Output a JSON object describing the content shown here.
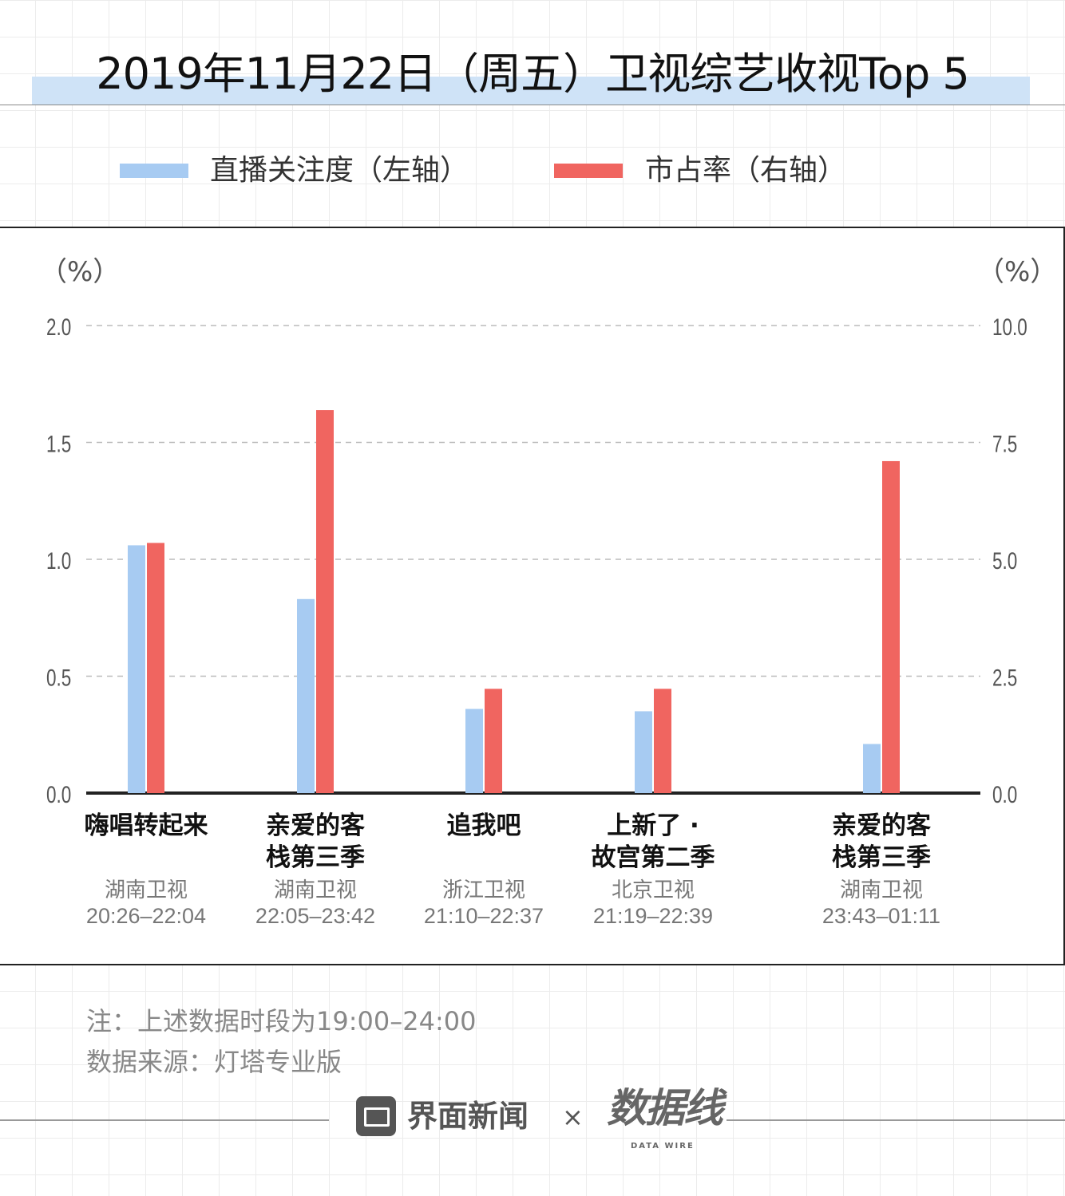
{
  "title": "2019年11月22日（周五）卫视综艺收视Top 5",
  "legend": [
    {
      "label": "直播关注度（左轴）",
      "color": "#a7cbf2"
    },
    {
      "label": "市占率（右轴）",
      "color": "#f06560"
    }
  ],
  "chart_data": {
    "type": "bar",
    "title": "2019年11月22日（周五）卫视综艺收视Top 5",
    "categories": [
      "嗨唱转起来",
      "亲爱的客栈第三季",
      "追我吧",
      "上新了·故宫第二季",
      "亲爱的客栈第三季"
    ],
    "category_lines": [
      [
        "嗨唱转起来"
      ],
      [
        "亲爱的客",
        "栈第三季"
      ],
      [
        "追我吧"
      ],
      [
        "上新了 ·",
        "故宫第二季"
      ],
      [
        "亲爱的客",
        "栈第三季"
      ]
    ],
    "channels": [
      "湖南卫视",
      "湖南卫视",
      "浙江卫视",
      "北京卫视",
      "湖南卫视"
    ],
    "time_slots": [
      "20:26–22:04",
      "22:05–23:42",
      "21:10–22:37",
      "21:19–22:39",
      "23:43–01:11"
    ],
    "series": [
      {
        "name": "直播关注度（左轴）",
        "axis": "left",
        "color": "#a7cbf2",
        "values": [
          1.06,
          0.83,
          0.36,
          0.35,
          0.21
        ]
      },
      {
        "name": "市占率（右轴）",
        "axis": "right",
        "color": "#f06560",
        "values": [
          5.35,
          8.19,
          2.23,
          2.23,
          7.1
        ]
      }
    ],
    "left_axis": {
      "unit": "（%）",
      "ylim": [
        0,
        2.0
      ],
      "ticks": [
        "0.0",
        "0.5",
        "1.0",
        "1.5",
        "2.0"
      ]
    },
    "right_axis": {
      "unit": "（%）",
      "ylim": [
        0,
        10.0
      ],
      "ticks": [
        "0.0",
        "2.5",
        "5.0",
        "7.5",
        "10.0"
      ]
    },
    "grid": true,
    "legend_position": "top"
  },
  "notes": [
    "注：上述数据时段为19:00–24:00",
    "数据来源：灯塔专业版"
  ],
  "footer": {
    "brand": "界面新闻",
    "times": "×",
    "logo": "数据线",
    "logo_sub": "DATA WIRE"
  }
}
